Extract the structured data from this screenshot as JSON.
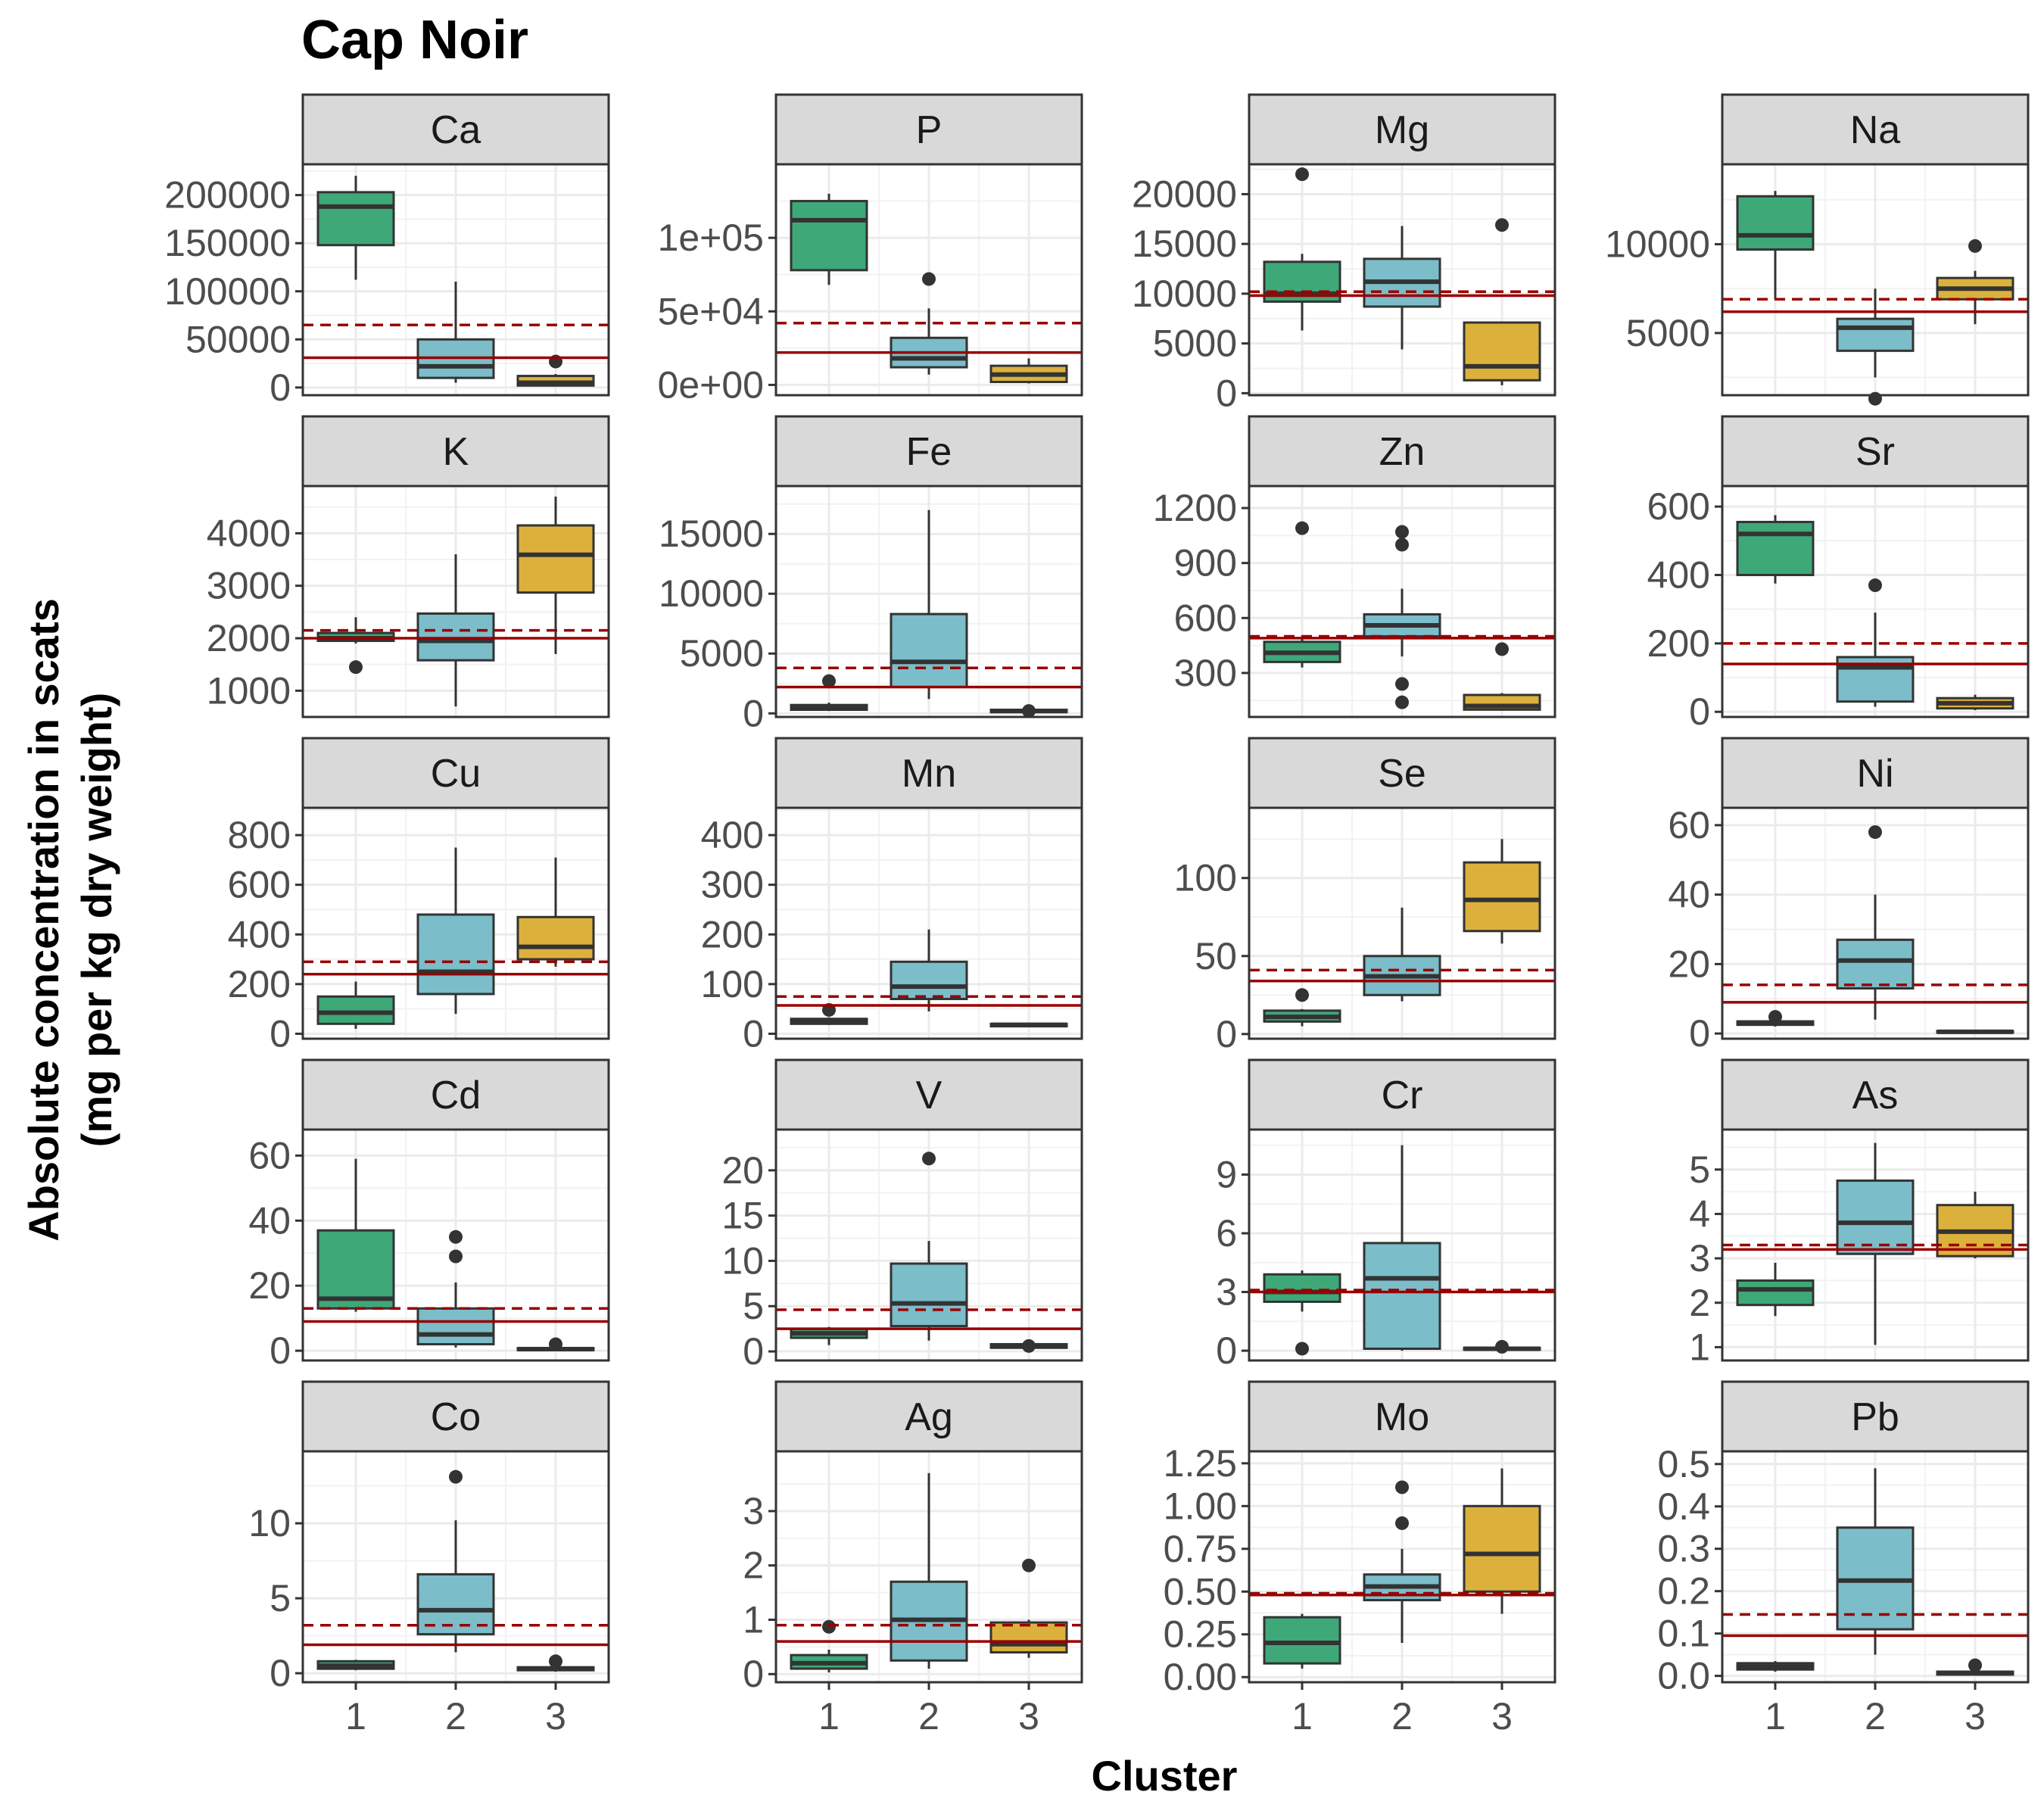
{
  "chart_data": {
    "type": "boxplot",
    "title": "Cap Noir",
    "xlabel": "Cluster",
    "ylabel_line1": "Absolute concentration in scats",
    "ylabel_line2": "(mg per kg dry weight)",
    "categories": [
      "1",
      "2",
      "3"
    ],
    "colors": {
      "1": "#3ea878",
      "2": "#7bbdc9",
      "3": "#dcb13b",
      "ref_line": "#990000",
      "strip_bg": "#d9d9d9"
    },
    "grid": true,
    "panels": [
      {
        "name": "Ca",
        "ylim": [
          -8000,
          232000
        ],
        "ticks": [
          0,
          50000,
          100000,
          150000,
          200000
        ],
        "tick_labels": [
          "0",
          "50000",
          "100000",
          "150000",
          "200000"
        ],
        "solid": 31000,
        "dashed": 65000,
        "boxes": [
          {
            "q1": 148000,
            "med": 188000,
            "q3": 203000,
            "lo": 112000,
            "hi": 220000,
            "out": []
          },
          {
            "q1": 10000,
            "med": 22000,
            "q3": 50000,
            "lo": 5000,
            "hi": 110000,
            "out": []
          },
          {
            "q1": 2000,
            "med": 5000,
            "q3": 12000,
            "lo": 1000,
            "hi": 14000,
            "out": [
              27000
            ]
          }
        ]
      },
      {
        "name": "P",
        "ylim": [
          -7000,
          150000
        ],
        "ticks": [
          0,
          50000,
          100000
        ],
        "tick_labels": [
          "0e+00",
          "5e+04",
          "1e+05"
        ],
        "solid": 22000,
        "dashed": 42000,
        "boxes": [
          {
            "q1": 78000,
            "med": 112000,
            "q3": 125000,
            "lo": 68000,
            "hi": 130000,
            "out": []
          },
          {
            "q1": 12000,
            "med": 18000,
            "q3": 32000,
            "lo": 7000,
            "hi": 52000,
            "out": [
              72000
            ]
          },
          {
            "q1": 2000,
            "med": 7000,
            "q3": 13000,
            "lo": 1000,
            "hi": 18000,
            "out": []
          }
        ]
      },
      {
        "name": "Mg",
        "ylim": [
          -200,
          23000
        ],
        "ticks": [
          0,
          5000,
          10000,
          15000,
          20000
        ],
        "tick_labels": [
          "0",
          "5000",
          "10000",
          "15000",
          "20000"
        ],
        "solid": 9800,
        "dashed": 10200,
        "boxes": [
          {
            "q1": 9200,
            "med": 10000,
            "q3": 13200,
            "lo": 6300,
            "hi": 14000,
            "out": [
              22000
            ]
          },
          {
            "q1": 8700,
            "med": 11200,
            "q3": 13500,
            "lo": 4400,
            "hi": 16800,
            "out": []
          },
          {
            "q1": 1300,
            "med": 2700,
            "q3": 7100,
            "lo": 800,
            "hi": 7200,
            "out": [
              16900
            ]
          }
        ]
      },
      {
        "name": "Na",
        "ylim": [
          1500,
          14500
        ],
        "ticks": [
          5000,
          10000
        ],
        "tick_labels": [
          "5000",
          "10000"
        ],
        "solid": 6200,
        "dashed": 6900,
        "boxes": [
          {
            "q1": 9700,
            "med": 10500,
            "q3": 12700,
            "lo": 6900,
            "hi": 13000,
            "out": []
          },
          {
            "q1": 4000,
            "med": 5300,
            "q3": 5800,
            "lo": 2500,
            "hi": 7500,
            "out": [
              1300
            ]
          },
          {
            "q1": 6900,
            "med": 7500,
            "q3": 8100,
            "lo": 5500,
            "hi": 8500,
            "out": [
              9900
            ]
          }
        ]
      },
      {
        "name": "K",
        "ylim": [
          500,
          4900
        ],
        "ticks": [
          1000,
          2000,
          3000,
          4000
        ],
        "tick_labels": [
          "1000",
          "2000",
          "3000",
          "4000"
        ],
        "solid": 2000,
        "dashed": 2150,
        "boxes": [
          {
            "q1": 1950,
            "med": 2000,
            "q3": 2100,
            "lo": 1900,
            "hi": 2400,
            "out": [
              1450
            ]
          },
          {
            "q1": 1580,
            "med": 1950,
            "q3": 2470,
            "lo": 700,
            "hi": 3600,
            "out": []
          },
          {
            "q1": 2870,
            "med": 3590,
            "q3": 4150,
            "lo": 1700,
            "hi": 4700,
            "out": []
          }
        ]
      },
      {
        "name": "Fe",
        "ylim": [
          -300,
          19000
        ],
        "ticks": [
          0,
          5000,
          10000,
          15000
        ],
        "tick_labels": [
          "0",
          "5000",
          "10000",
          "15000"
        ],
        "solid": 2200,
        "dashed": 3800,
        "boxes": [
          {
            "q1": 300,
            "med": 500,
            "q3": 700,
            "lo": 200,
            "hi": 900,
            "out": [
              2700
            ]
          },
          {
            "q1": 2200,
            "med": 4300,
            "q3": 8300,
            "lo": 1200,
            "hi": 17000,
            "out": []
          },
          {
            "q1": 100,
            "med": 200,
            "q3": 300,
            "lo": 50,
            "hi": 350,
            "out": [
              200
            ]
          }
        ]
      },
      {
        "name": "Zn",
        "ylim": [
          60,
          1320
        ],
        "ticks": [
          300,
          600,
          900,
          1200
        ],
        "tick_labels": [
          "300",
          "600",
          "900",
          "1200"
        ],
        "solid": 490,
        "dashed": 500,
        "boxes": [
          {
            "q1": 360,
            "med": 410,
            "q3": 470,
            "lo": 330,
            "hi": 500,
            "out": [
              1090
            ]
          },
          {
            "q1": 500,
            "med": 560,
            "q3": 620,
            "lo": 390,
            "hi": 760,
            "out": [
              1070,
              1000,
              240,
              140
            ]
          },
          {
            "q1": 100,
            "med": 120,
            "q3": 180,
            "lo": 95,
            "hi": 190,
            "out": [
              430
            ]
          }
        ]
      },
      {
        "name": "Sr",
        "ylim": [
          -15,
          660
        ],
        "ticks": [
          0,
          200,
          400,
          600
        ],
        "tick_labels": [
          "0",
          "200",
          "400",
          "600"
        ],
        "solid": 140,
        "dashed": 200,
        "boxes": [
          {
            "q1": 400,
            "med": 520,
            "q3": 555,
            "lo": 375,
            "hi": 575,
            "out": []
          },
          {
            "q1": 30,
            "med": 130,
            "q3": 160,
            "lo": 15,
            "hi": 290,
            "out": [
              370
            ]
          },
          {
            "q1": 10,
            "med": 25,
            "q3": 40,
            "lo": 5,
            "hi": 50,
            "out": []
          }
        ]
      },
      {
        "name": "Cu",
        "ylim": [
          -20,
          910
        ],
        "ticks": [
          0,
          200,
          400,
          600,
          800
        ],
        "tick_labels": [
          "0",
          "200",
          "400",
          "600",
          "800"
        ],
        "solid": 240,
        "dashed": 290,
        "boxes": [
          {
            "q1": 40,
            "med": 85,
            "q3": 150,
            "lo": 20,
            "hi": 210,
            "out": []
          },
          {
            "q1": 160,
            "med": 250,
            "q3": 480,
            "lo": 80,
            "hi": 750,
            "out": []
          },
          {
            "q1": 300,
            "med": 350,
            "q3": 470,
            "lo": 270,
            "hi": 710,
            "out": []
          }
        ]
      },
      {
        "name": "Mn",
        "ylim": [
          -10,
          455
        ],
        "ticks": [
          0,
          100,
          200,
          300,
          400
        ],
        "tick_labels": [
          "0",
          "100",
          "200",
          "300",
          "400"
        ],
        "solid": 57,
        "dashed": 75,
        "boxes": [
          {
            "q1": 20,
            "med": 25,
            "q3": 30,
            "lo": 18,
            "hi": 33,
            "out": [
              48
            ]
          },
          {
            "q1": 70,
            "med": 95,
            "q3": 145,
            "lo": 45,
            "hi": 210,
            "out": []
          },
          {
            "q1": 15,
            "med": 18,
            "q3": 20,
            "lo": 13,
            "hi": 22,
            "out": []
          }
        ]
      },
      {
        "name": "Se",
        "ylim": [
          -3,
          145
        ],
        "ticks": [
          0,
          50,
          100
        ],
        "tick_labels": [
          "0",
          "50",
          "100"
        ],
        "solid": 34,
        "dashed": 41,
        "boxes": [
          {
            "q1": 8,
            "med": 11,
            "q3": 15,
            "lo": 5,
            "hi": 16,
            "out": [
              25
            ]
          },
          {
            "q1": 25,
            "med": 37,
            "q3": 50,
            "lo": 21,
            "hi": 81,
            "out": []
          },
          {
            "q1": 66,
            "med": 86,
            "q3": 110,
            "lo": 58,
            "hi": 125,
            "out": []
          }
        ]
      },
      {
        "name": "Ni",
        "ylim": [
          -1.5,
          65
        ],
        "ticks": [
          0,
          20,
          40,
          60
        ],
        "tick_labels": [
          "0",
          "20",
          "40",
          "60"
        ],
        "solid": 9,
        "dashed": 14,
        "boxes": [
          {
            "q1": 2.5,
            "med": 3,
            "q3": 3.5,
            "lo": 2,
            "hi": 4,
            "out": [
              4.8
            ]
          },
          {
            "q1": 13,
            "med": 21,
            "q3": 27,
            "lo": 4,
            "hi": 40,
            "out": [
              58
            ]
          },
          {
            "q1": 0.3,
            "med": 0.5,
            "q3": 0.7,
            "lo": 0.2,
            "hi": 0.8,
            "out": []
          }
        ]
      },
      {
        "name": "Cd",
        "ylim": [
          -3,
          68
        ],
        "ticks": [
          0,
          20,
          40,
          60
        ],
        "tick_labels": [
          "0",
          "20",
          "40",
          "60"
        ],
        "solid": 9,
        "dashed": 13,
        "boxes": [
          {
            "q1": 13,
            "med": 16,
            "q3": 37,
            "lo": 12,
            "hi": 59,
            "out": []
          },
          {
            "q1": 2,
            "med": 5,
            "q3": 13,
            "lo": 1,
            "hi": 21,
            "out": [
              35,
              29
            ]
          },
          {
            "q1": 0.2,
            "med": 0.5,
            "q3": 0.8,
            "lo": 0.1,
            "hi": 1,
            "out": [
              2
            ]
          }
        ]
      },
      {
        "name": "V",
        "ylim": [
          -1,
          24.5
        ],
        "ticks": [
          0,
          5,
          10,
          15,
          20
        ],
        "tick_labels": [
          "0",
          "5",
          "10",
          "15",
          "20"
        ],
        "solid": 2.5,
        "dashed": 4.6,
        "boxes": [
          {
            "q1": 1.5,
            "med": 2,
            "q3": 2.5,
            "lo": 0.7,
            "hi": 2.7,
            "out": []
          },
          {
            "q1": 2.8,
            "med": 5.3,
            "q3": 9.7,
            "lo": 1.2,
            "hi": 12.2,
            "out": [
              21.3
            ]
          },
          {
            "q1": 0.4,
            "med": 0.6,
            "q3": 0.8,
            "lo": 0.3,
            "hi": 0.9,
            "out": [
              0.6
            ]
          }
        ]
      },
      {
        "name": "Cr",
        "ylim": [
          -0.5,
          11.3
        ],
        "ticks": [
          0,
          3,
          6,
          9
        ],
        "tick_labels": [
          "0",
          "3",
          "6",
          "9"
        ],
        "solid": 3.0,
        "dashed": 3.1,
        "boxes": [
          {
            "q1": 2.5,
            "med": 3.0,
            "q3": 3.9,
            "lo": 2.0,
            "hi": 4.1,
            "out": [
              0.1
            ]
          },
          {
            "q1": 0.1,
            "med": 3.7,
            "q3": 5.5,
            "lo": 0,
            "hi": 10.5,
            "out": []
          },
          {
            "q1": 0.05,
            "med": 0.1,
            "q3": 0.15,
            "lo": 0,
            "hi": 0.2,
            "out": [
              0.2
            ]
          }
        ]
      },
      {
        "name": "As",
        "ylim": [
          0.7,
          5.9
        ],
        "ticks": [
          1,
          2,
          3,
          4,
          5
        ],
        "tick_labels": [
          "1",
          "2",
          "3",
          "4",
          "5"
        ],
        "solid": 3.2,
        "dashed": 3.3,
        "boxes": [
          {
            "q1": 1.95,
            "med": 2.3,
            "q3": 2.5,
            "lo": 1.7,
            "hi": 2.9,
            "out": []
          },
          {
            "q1": 3.1,
            "med": 3.8,
            "q3": 4.75,
            "lo": 1.05,
            "hi": 5.6,
            "out": []
          },
          {
            "q1": 3.05,
            "med": 3.6,
            "q3": 4.2,
            "lo": 3.0,
            "hi": 4.5,
            "out": []
          }
        ]
      },
      {
        "name": "Co",
        "ylim": [
          -0.6,
          14.8
        ],
        "ticks": [
          0,
          5,
          10
        ],
        "tick_labels": [
          "0",
          "5",
          "10"
        ],
        "solid": 1.9,
        "dashed": 3.2,
        "boxes": [
          {
            "q1": 0.3,
            "med": 0.5,
            "q3": 0.8,
            "lo": 0.2,
            "hi": 0.9,
            "out": []
          },
          {
            "q1": 2.6,
            "med": 4.2,
            "q3": 6.6,
            "lo": 1.4,
            "hi": 10.2,
            "out": [
              13.1
            ]
          },
          {
            "q1": 0.2,
            "med": 0.3,
            "q3": 0.4,
            "lo": 0.1,
            "hi": 0.5,
            "out": [
              0.8
            ]
          }
        ]
      },
      {
        "name": "Ag",
        "ylim": [
          -0.15,
          4.1
        ],
        "ticks": [
          0,
          1,
          2,
          3
        ],
        "tick_labels": [
          "0",
          "1",
          "2",
          "3"
        ],
        "solid": 0.6,
        "dashed": 0.9,
        "boxes": [
          {
            "q1": 0.1,
            "med": 0.2,
            "q3": 0.35,
            "lo": 0.03,
            "hi": 0.45,
            "out": [
              0.87
            ]
          },
          {
            "q1": 0.25,
            "med": 1.0,
            "q3": 1.7,
            "lo": 0.1,
            "hi": 3.7,
            "out": []
          },
          {
            "q1": 0.4,
            "med": 0.55,
            "q3": 0.95,
            "lo": 0.3,
            "hi": 1.0,
            "out": [
              2.0
            ]
          }
        ]
      },
      {
        "name": "Mo",
        "ylim": [
          -0.03,
          1.32
        ],
        "ticks": [
          0,
          0.25,
          0.5,
          0.75,
          1.0,
          1.25
        ],
        "tick_labels": [
          "0.00",
          "0.25",
          "0.50",
          "0.75",
          "1.00",
          "1.25"
        ],
        "solid": 0.48,
        "dashed": 0.49,
        "boxes": [
          {
            "q1": 0.08,
            "med": 0.2,
            "q3": 0.35,
            "lo": 0.05,
            "hi": 0.37,
            "out": []
          },
          {
            "q1": 0.45,
            "med": 0.53,
            "q3": 0.6,
            "lo": 0.2,
            "hi": 0.75,
            "out": [
              1.11,
              0.9
            ]
          },
          {
            "q1": 0.5,
            "med": 0.72,
            "q3": 1.0,
            "lo": 0.37,
            "hi": 1.22,
            "out": []
          }
        ]
      },
      {
        "name": "Pb",
        "ylim": [
          -0.015,
          0.53
        ],
        "ticks": [
          0,
          0.1,
          0.2,
          0.3,
          0.4,
          0.5
        ],
        "tick_labels": [
          "0.0",
          "0.1",
          "0.2",
          "0.3",
          "0.4",
          "0.5"
        ],
        "solid": 0.095,
        "dashed": 0.145,
        "boxes": [
          {
            "q1": 0.015,
            "med": 0.022,
            "q3": 0.03,
            "lo": 0.01,
            "hi": 0.035,
            "out": []
          },
          {
            "q1": 0.11,
            "med": 0.225,
            "q3": 0.35,
            "lo": 0.05,
            "hi": 0.49,
            "out": []
          },
          {
            "q1": 0.003,
            "med": 0.006,
            "q3": 0.01,
            "lo": 0.001,
            "hi": 0.012,
            "out": [
              0.025
            ]
          }
        ]
      }
    ]
  }
}
